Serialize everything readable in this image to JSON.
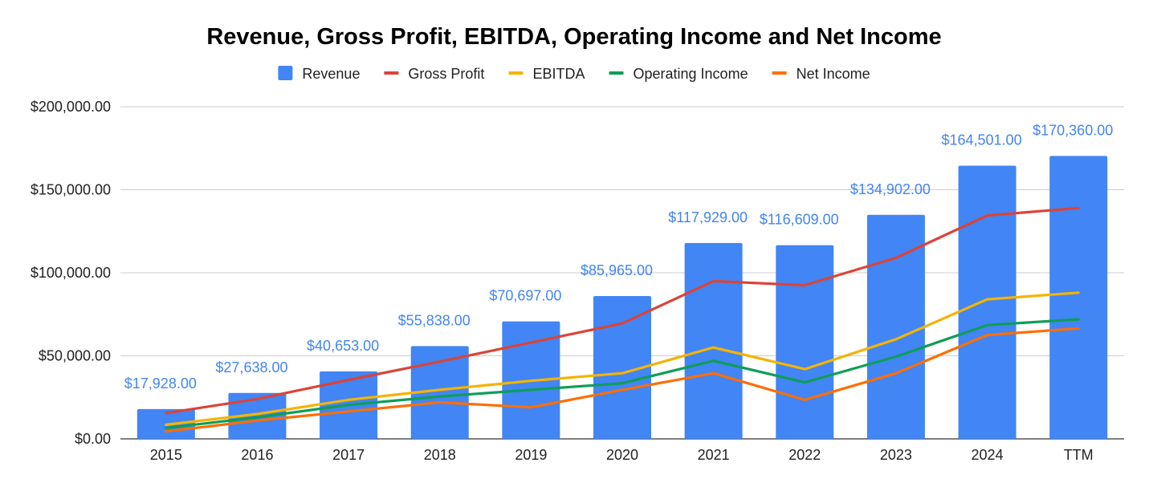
{
  "chart_data": {
    "type": "bar",
    "title": "Revenue, Gross Profit, EBITDA, Operating Income and Net Income",
    "xlabel": "",
    "ylabel": "",
    "categories": [
      "2015",
      "2016",
      "2017",
      "2018",
      "2019",
      "2020",
      "2021",
      "2022",
      "2023",
      "2024",
      "TTM"
    ],
    "ylim": [
      0,
      200000
    ],
    "y_ticks": [
      0,
      50000,
      100000,
      150000,
      200000
    ],
    "y_tick_labels": [
      "$0.00",
      "$50,000.00",
      "$100,000.00",
      "$150,000.00",
      "$200,000.00"
    ],
    "grid": true,
    "legend_position": "top",
    "series": [
      {
        "name": "Revenue",
        "kind": "bar",
        "color": "#4285f4",
        "values": [
          17928,
          27638,
          40653,
          55838,
          70697,
          85965,
          117929,
          116609,
          134902,
          164501,
          170360
        ],
        "data_labels": [
          "$17,928.00",
          "$27,638.00",
          "$40,653.00",
          "$55,838.00",
          "$70,697.00",
          "$85,965.00",
          "$117,929.00",
          "$116,609.00",
          "$134,902.00",
          "$164,501.00",
          "$170,360.00"
        ]
      },
      {
        "name": "Gross Profit",
        "kind": "line",
        "color": "#db4437",
        "values": [
          15500,
          24000,
          35500,
          46500,
          58000,
          69500,
          95000,
          92500,
          109000,
          134500,
          139000
        ]
      },
      {
        "name": "EBITDA",
        "kind": "line",
        "color": "#f4b400",
        "values": [
          8500,
          15000,
          23500,
          29500,
          35000,
          39500,
          55000,
          42000,
          60000,
          84000,
          88000
        ]
      },
      {
        "name": "Operating Income",
        "kind": "line",
        "color": "#0f9d58",
        "values": [
          6500,
          13000,
          20500,
          25500,
          29500,
          33500,
          47000,
          34000,
          49500,
          68500,
          72000
        ]
      },
      {
        "name": "Net Income",
        "kind": "line",
        "color": "#ff6d01",
        "values": [
          4500,
          11000,
          16500,
          22000,
          19000,
          29500,
          39500,
          23500,
          39500,
          62500,
          66500
        ]
      }
    ]
  }
}
